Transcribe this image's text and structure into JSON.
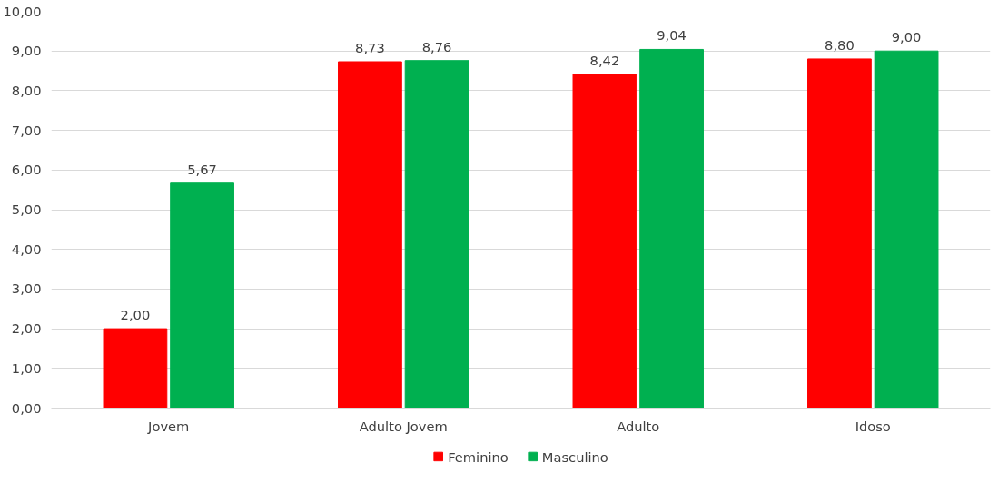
{
  "chart_data": {
    "type": "bar",
    "categories": [
      "Jovem",
      "Adulto Jovem",
      "Adulto",
      "Idoso"
    ],
    "series": [
      {
        "name": "Feminino",
        "color": "#ff0000",
        "values": [
          2.0,
          8.73,
          8.42,
          8.8
        ],
        "value_labels": [
          "2,00",
          "8,73",
          "8,42",
          "8,80"
        ]
      },
      {
        "name": "Masculino",
        "color": "#00b050",
        "values": [
          5.67,
          8.76,
          9.04,
          9.0
        ],
        "value_labels": [
          "5,67",
          "8,76",
          "9,04",
          "9,00"
        ]
      }
    ],
    "ylim": [
      0,
      10
    ],
    "yticks": [
      {
        "value": 0,
        "label": "0,00"
      },
      {
        "value": 1,
        "label": "1,00"
      },
      {
        "value": 2,
        "label": "2,00"
      },
      {
        "value": 3,
        "label": "3,00"
      },
      {
        "value": 4,
        "label": "4,00"
      },
      {
        "value": 5,
        "label": "5,00"
      },
      {
        "value": 6,
        "label": "6,00"
      },
      {
        "value": 7,
        "label": "7,00"
      },
      {
        "value": 8,
        "label": "8,00"
      },
      {
        "value": 9,
        "label": "9,00"
      },
      {
        "value": 10,
        "label": "10,00"
      }
    ],
    "grid": "y",
    "legend": "bottom"
  }
}
